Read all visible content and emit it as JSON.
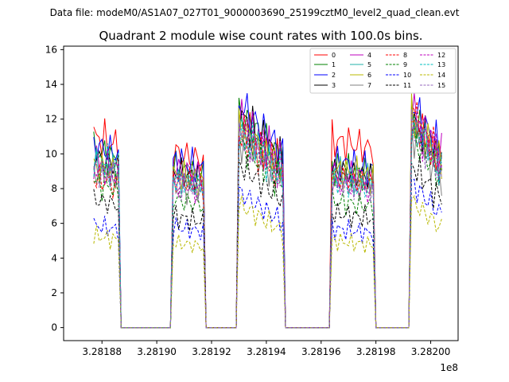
{
  "figure": {
    "suptitle": "Data file: modeM0/AS1A07_027T01_9000003690_25199cztM0_level2_quad_clean.evt",
    "x_offset_label": "1e8"
  },
  "chart_data": {
    "type": "line",
    "title": "Quadrant 2 module wise count rates with 100.0s bins.",
    "xlabel": "",
    "ylabel": "",
    "x_offset": 100000000,
    "xlim": [
      3.281866,
      3.28201
    ],
    "ylim": [
      -0.75,
      16.2
    ],
    "xticks": [
      3.28188,
      3.2819,
      3.28192,
      3.28194,
      3.28196,
      3.28198,
      3.282
    ],
    "xtick_labels": [
      "3.28188",
      "3.28190",
      "3.28192",
      "3.28194",
      "3.28196",
      "3.28198",
      "3.28200"
    ],
    "yticks": [
      0,
      2,
      4,
      6,
      8,
      10,
      12,
      14,
      16
    ],
    "ytick_labels": [
      "0",
      "2",
      "4",
      "6",
      "8",
      "10",
      "12",
      "14",
      "16"
    ],
    "grid": false,
    "legend": {
      "placement": "top-right",
      "columns": 4
    },
    "bin_width_s": 100,
    "active_intervals_x": [
      [
        3.281877,
        3.281886
      ],
      [
        3.281906,
        3.281917
      ],
      [
        3.28193,
        3.281946
      ],
      [
        3.281964,
        3.281979
      ],
      [
        3.281993,
        3.282004
      ]
    ],
    "series": [
      {
        "name": "0",
        "color": "#ff0000",
        "dash": "solid",
        "levels": [
          11.0,
          10.1,
          11.8,
          10.8,
          12.3
        ]
      },
      {
        "name": "1",
        "color": "#008000",
        "dash": "solid",
        "levels": [
          10.2,
          9.2,
          12.4,
          9.2,
          12.2
        ]
      },
      {
        "name": "2",
        "color": "#0000ff",
        "dash": "solid",
        "levels": [
          10.5,
          9.6,
          12.9,
          9.6,
          12.9
        ]
      },
      {
        "name": "3",
        "color": "#000000",
        "dash": "solid",
        "levels": [
          9.8,
          9.0,
          12.3,
          9.1,
          12.0
        ]
      },
      {
        "name": "4",
        "color": "#bf00bf",
        "dash": "solid",
        "levels": [
          9.6,
          9.2,
          12.1,
          9.0,
          12.6
        ]
      },
      {
        "name": "5",
        "color": "#20b2aa",
        "dash": "solid",
        "levels": [
          9.4,
          8.6,
          11.4,
          8.9,
          11.6
        ]
      },
      {
        "name": "6",
        "color": "#b8b800",
        "dash": "solid",
        "levels": [
          9.3,
          8.8,
          11.6,
          9.1,
          12.2
        ]
      },
      {
        "name": "7",
        "color": "#808080",
        "dash": "solid",
        "levels": [
          9.0,
          8.2,
          10.8,
          8.4,
          11.2
        ]
      },
      {
        "name": "8",
        "color": "#ff0000",
        "dash": "dashed",
        "levels": [
          8.6,
          8.6,
          11.2,
          8.7,
          12.3
        ]
      },
      {
        "name": "9",
        "color": "#008000",
        "dash": "dashed",
        "levels": [
          8.4,
          7.4,
          10.6,
          7.3,
          11.0
        ]
      },
      {
        "name": "10",
        "color": "#0000ff",
        "dash": "dashed",
        "levels": [
          5.9,
          5.8,
          7.8,
          5.7,
          8.3
        ]
      },
      {
        "name": "11",
        "color": "#000000",
        "dash": "dashed",
        "levels": [
          7.4,
          6.4,
          9.4,
          6.6,
          9.4
        ]
      },
      {
        "name": "12",
        "color": "#bf00bf",
        "dash": "dashed",
        "levels": [
          9.2,
          8.3,
          11.5,
          8.3,
          11.9
        ]
      },
      {
        "name": "13",
        "color": "#00bfbf",
        "dash": "dashed",
        "levels": [
          9.8,
          8.5,
          11.3,
          8.4,
          11.8
        ]
      },
      {
        "name": "14",
        "color": "#b8b800",
        "dash": "dashed",
        "levels": [
          5.3,
          4.9,
          7.1,
          5.0,
          7.3
        ]
      },
      {
        "name": "15",
        "color": "#9467bd",
        "dash": "dashed",
        "levels": [
          9.0,
          8.4,
          11.0,
          8.5,
          11.4
        ]
      }
    ]
  }
}
